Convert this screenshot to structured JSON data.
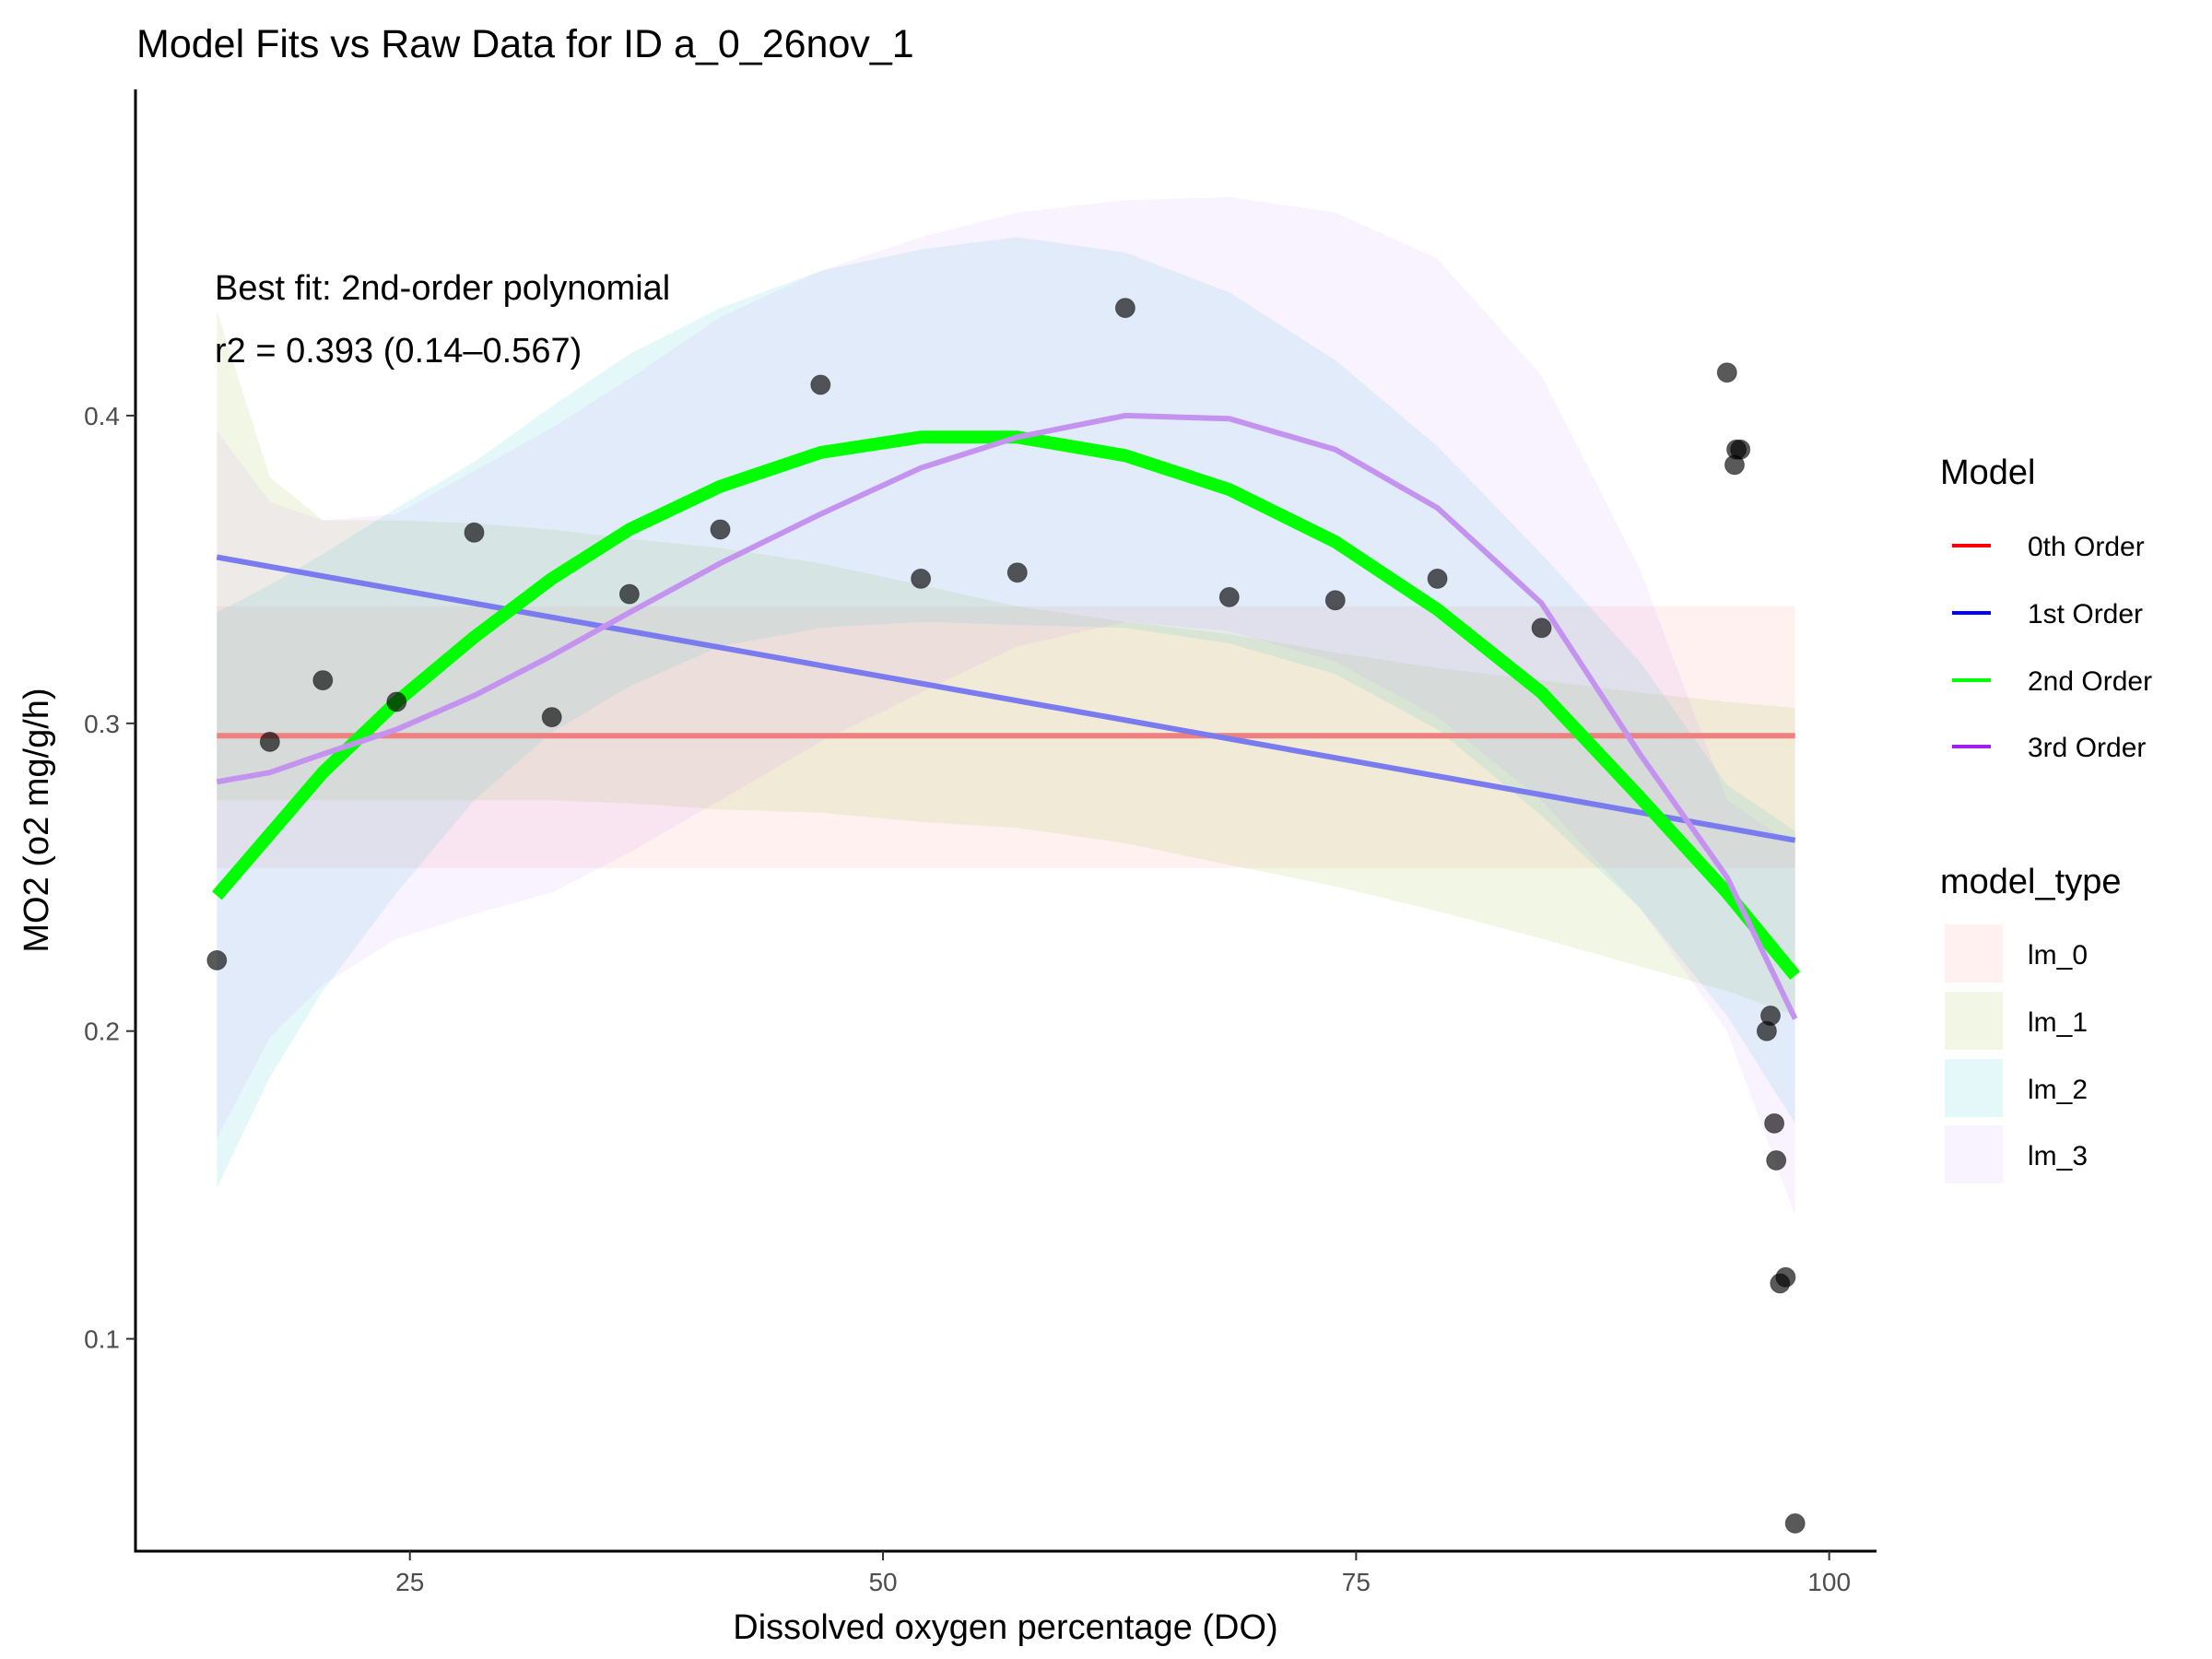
{
  "chart_data": {
    "type": "line",
    "title": "Model Fits vs Raw Data for ID a_0_26nov_1",
    "xlabel": "Dissolved oxygen percentage (DO)",
    "ylabel": "MO2 (o2 mg/g/h)",
    "xlim": [
      10.5,
      102.5
    ],
    "ylim": [
      0.031,
      0.506
    ],
    "x_ticks": [
      25,
      50,
      75,
      100
    ],
    "x_tick_labels": [
      "25",
      "50",
      "75",
      "100"
    ],
    "y_ticks": [
      0.1,
      0.2,
      0.3,
      0.4
    ],
    "y_tick_labels": [
      "0.1",
      "0.2",
      "0.3",
      "0.4"
    ],
    "grid": false,
    "annotation": {
      "line1": "Best fit: 2nd-order polynomial",
      "line2": "r2 = 0.393 (0.14–0.567)"
    },
    "points": {
      "x": [
        14.8,
        17.6,
        20.4,
        24.3,
        28.4,
        32.5,
        36.6,
        41.4,
        46.7,
        52.0,
        57.1,
        62.8,
        68.3,
        73.9,
        79.3,
        84.8,
        94.6,
        95.0,
        95.1,
        95.3,
        96.7,
        96.9,
        97.1,
        97.2,
        97.4,
        97.7,
        98.2
      ],
      "y": [
        0.223,
        0.294,
        0.314,
        0.307,
        0.362,
        0.302,
        0.342,
        0.363,
        0.41,
        0.347,
        0.349,
        0.435,
        0.341,
        0.34,
        0.347,
        0.331,
        0.414,
        0.384,
        0.389,
        0.389,
        0.2,
        0.205,
        0.17,
        0.158,
        0.118,
        0.12,
        0.04
      ]
    },
    "ribbons": [
      {
        "name": "lm_0",
        "color": "#f8766d",
        "x": [
          14.8,
          98.2
        ],
        "lower": [
          0.253,
          0.253
        ],
        "upper": [
          0.338,
          0.338
        ]
      },
      {
        "name": "lm_1",
        "color": "#7cae00",
        "x": [
          14.8,
          17.6,
          20.4,
          24.3,
          28.4,
          32.5,
          36.6,
          41.4,
          46.7,
          52.0,
          57.1,
          62.8,
          68.3,
          73.9,
          79.3,
          84.8,
          90.0,
          94.6,
          98.2
        ],
        "lower": [
          0.275,
          0.275,
          0.275,
          0.275,
          0.275,
          0.275,
          0.274,
          0.272,
          0.271,
          0.268,
          0.266,
          0.261,
          0.254,
          0.247,
          0.239,
          0.23,
          0.221,
          0.213,
          0.205
        ],
        "upper": [
          0.434,
          0.38,
          0.366,
          0.366,
          0.365,
          0.363,
          0.36,
          0.357,
          0.352,
          0.345,
          0.338,
          0.333,
          0.329,
          0.323,
          0.318,
          0.314,
          0.31,
          0.307,
          0.305
        ]
      },
      {
        "name": "lm_2",
        "color": "#00bfc4",
        "x": [
          14.8,
          17.6,
          20.4,
          24.3,
          28.4,
          32.5,
          36.6,
          41.4,
          46.7,
          52.0,
          57.1,
          62.8,
          68.3,
          73.9,
          79.3,
          84.8,
          90.0,
          94.6,
          98.2
        ],
        "lower": [
          0.149,
          0.185,
          0.213,
          0.245,
          0.275,
          0.297,
          0.312,
          0.325,
          0.331,
          0.333,
          0.332,
          0.331,
          0.326,
          0.316,
          0.298,
          0.27,
          0.24,
          0.205,
          0.17
        ],
        "upper": [
          0.336,
          0.345,
          0.355,
          0.37,
          0.385,
          0.403,
          0.42,
          0.435,
          0.447,
          0.454,
          0.458,
          0.453,
          0.44,
          0.418,
          0.39,
          0.355,
          0.32,
          0.28,
          0.265
        ]
      },
      {
        "name": "lm_3",
        "color": "#c77cff",
        "x": [
          14.8,
          17.6,
          20.4,
          24.3,
          28.4,
          32.5,
          36.6,
          41.4,
          46.7,
          52.0,
          57.1,
          62.8,
          68.3,
          73.9,
          79.3,
          84.8,
          90.0,
          94.6,
          98.2
        ],
        "lower": [
          0.165,
          0.198,
          0.215,
          0.23,
          0.238,
          0.245,
          0.258,
          0.275,
          0.294,
          0.31,
          0.325,
          0.333,
          0.33,
          0.32,
          0.302,
          0.275,
          0.24,
          0.2,
          0.14
        ],
        "upper": [
          0.395,
          0.372,
          0.366,
          0.368,
          0.382,
          0.396,
          0.412,
          0.432,
          0.447,
          0.458,
          0.466,
          0.47,
          0.471,
          0.466,
          0.451,
          0.413,
          0.35,
          0.275,
          0.26
        ]
      }
    ],
    "series": [
      {
        "name": "0th Order",
        "model": "lm_0",
        "color": "#ff0000",
        "display_color": "#f08080",
        "x": [
          14.8,
          98.2
        ],
        "values": [
          0.296,
          0.296
        ]
      },
      {
        "name": "1st Order",
        "model": "lm_1",
        "color": "#0000ff",
        "display_color": "#7b7bf0",
        "x": [
          14.8,
          98.2
        ],
        "values": [
          0.354,
          0.262
        ]
      },
      {
        "name": "2nd Order",
        "model": "lm_2",
        "color": "#00ff00",
        "display_color": "#00ff00",
        "x": [
          14.8,
          17.6,
          20.4,
          24.3,
          28.4,
          32.5,
          36.6,
          41.4,
          46.7,
          52.0,
          57.1,
          62.8,
          68.3,
          73.9,
          79.3,
          84.8,
          90.0,
          94.6,
          98.2
        ],
        "values": [
          0.244,
          0.264,
          0.284,
          0.307,
          0.328,
          0.347,
          0.363,
          0.377,
          0.388,
          0.393,
          0.393,
          0.387,
          0.376,
          0.359,
          0.337,
          0.31,
          0.276,
          0.245,
          0.218
        ]
      },
      {
        "name": "3rd Order",
        "model": "lm_3",
        "color": "#a020f0",
        "display_color": "#c493f0",
        "x": [
          14.8,
          17.6,
          20.4,
          24.3,
          28.4,
          32.5,
          36.6,
          41.4,
          46.7,
          52.0,
          57.1,
          62.8,
          68.3,
          73.9,
          79.3,
          84.8,
          90.0,
          94.6,
          98.2
        ],
        "values": [
          0.281,
          0.284,
          0.29,
          0.298,
          0.309,
          0.322,
          0.336,
          0.352,
          0.368,
          0.383,
          0.393,
          0.4,
          0.399,
          0.389,
          0.37,
          0.339,
          0.29,
          0.25,
          0.204
        ]
      }
    ],
    "legend_model": {
      "title": "Model",
      "items": [
        "0th Order",
        "1st Order",
        "2nd Order",
        "3rd Order"
      ],
      "colors": [
        "#ff0000",
        "#0000ff",
        "#00ff00",
        "#a020f0"
      ]
    },
    "legend_model_type": {
      "title": "model_type",
      "items": [
        "lm_0",
        "lm_1",
        "lm_2",
        "lm_3"
      ],
      "colors": [
        "#f8766d",
        "#7cae00",
        "#00bfc4",
        "#c77cff"
      ]
    },
    "legend_placement": "right"
  }
}
